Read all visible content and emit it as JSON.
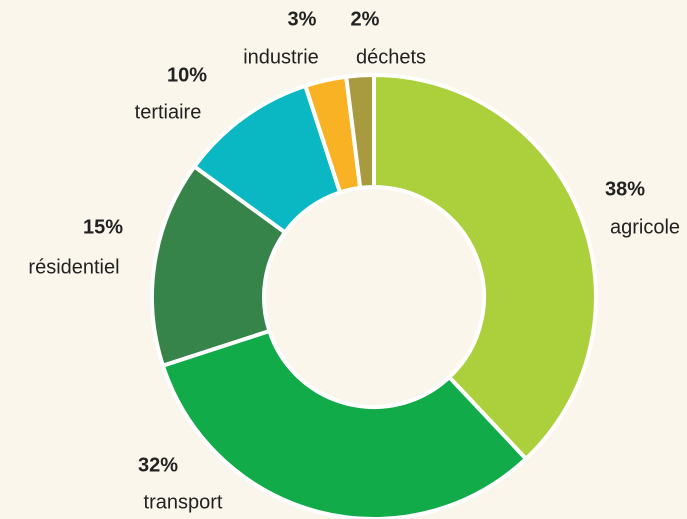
{
  "chart_data": {
    "type": "donut",
    "categories": [
      "agricole",
      "transport",
      "résidentiel",
      "tertiaire",
      "industrie",
      "déchets"
    ],
    "values": [
      38,
      32,
      15,
      10,
      3,
      2
    ],
    "value_labels": [
      "38%",
      "32%",
      "15%",
      "10%",
      "3%",
      "2%"
    ],
    "colors": [
      "#acd03c",
      "#12ab4a",
      "#37844a",
      "#0ab8c4",
      "#f9b223",
      "#a89a3f"
    ]
  }
}
